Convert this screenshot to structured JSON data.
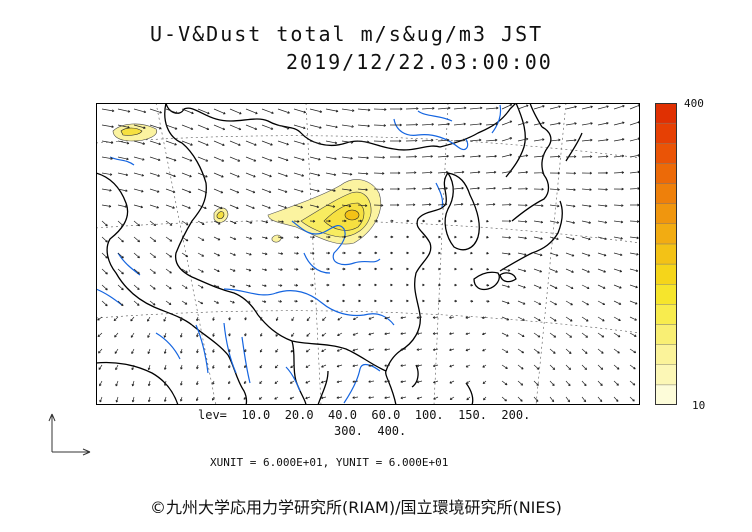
{
  "title": {
    "line1": "U-V&Dust total m/s&ug/m3 JST",
    "line2": "2019/12/22.03:00:00"
  },
  "colorbar": {
    "max_label": "400",
    "min_label": "10",
    "colors": [
      "#fdfcd9",
      "#fcf7b6",
      "#fbf39a",
      "#f9ef74",
      "#f8ec4e",
      "#f6e52c",
      "#f5d51a",
      "#f3c216",
      "#f2ac12",
      "#f0960e",
      "#ee800b",
      "#ec6a08",
      "#ea5406",
      "#e64004",
      "#e03002"
    ]
  },
  "contour_levels": {
    "line1": "lev=  10.0  20.0  40.0  60.0  100.  150.  200.",
    "line2": "300.  400."
  },
  "units": "XUNIT = 6.000E+01, YUNIT = 6.000E+01",
  "credit": "©九州大学応用力学研究所(RIAM)/国立環境研究所(NIES)",
  "style": {
    "coast_color": "#000000",
    "river_color": "#1565e0",
    "vector_color": "#222222",
    "dust_low": "#fbf3a0",
    "dust_mid": "#f6e040",
    "dust_high": "#f3c216"
  }
}
